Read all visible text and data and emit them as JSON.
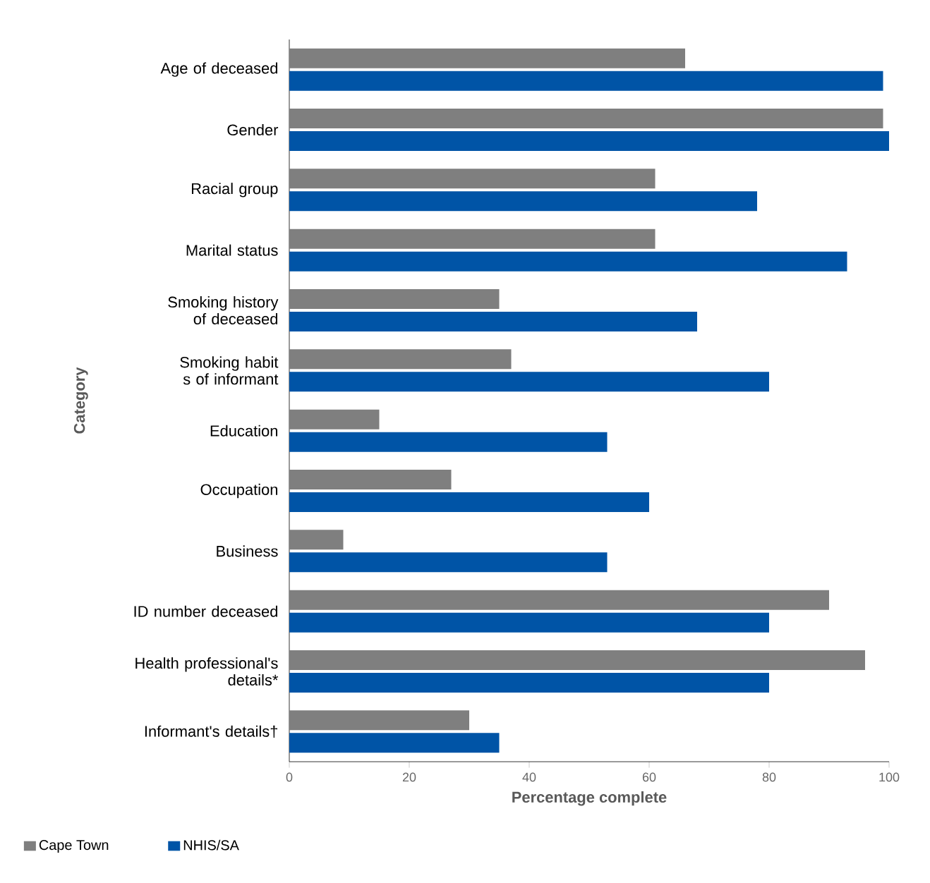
{
  "chart_data": {
    "type": "bar",
    "orientation": "horizontal",
    "xlabel": "Percentage complete",
    "ylabel": "Category",
    "categories": [
      "Age of deceased",
      "Gender",
      "Racial group",
      "Marital status",
      "Smoking history of deceased",
      "Smoking habit s of informant",
      "Education",
      "Occupation",
      "Business",
      "ID number deceased",
      "Health professional's details*",
      "Informant's details†"
    ],
    "series": [
      {
        "name": "Cape Town",
        "color": "#7f7f7f",
        "values": [
          66,
          99,
          61,
          61,
          35,
          37,
          15,
          27,
          9,
          90,
          96,
          30
        ]
      },
      {
        "name": "NHIS/SA",
        "color": "#0054a6",
        "values": [
          99,
          100,
          78,
          93,
          68,
          80,
          53,
          60,
          53,
          80,
          80,
          35
        ]
      }
    ],
    "xlim": [
      0,
      100
    ],
    "xticks": [
      0,
      20,
      40,
      60,
      80,
      100
    ],
    "grid": false,
    "legend": "bottom"
  }
}
